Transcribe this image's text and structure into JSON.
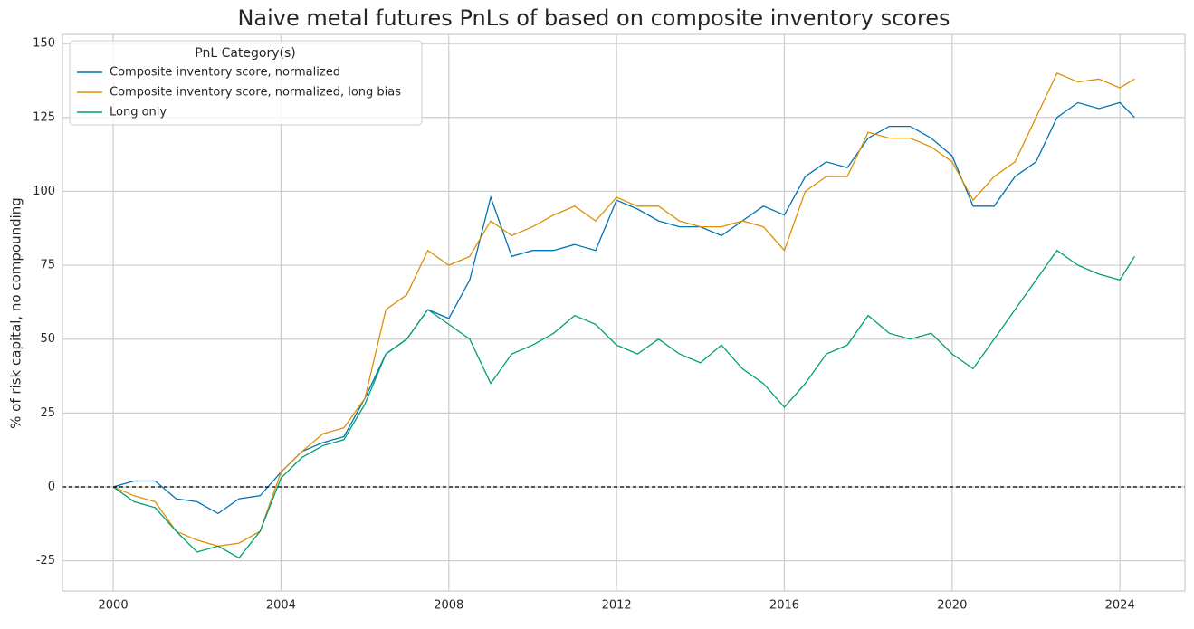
{
  "chart_data": {
    "type": "line",
    "title": "Naive metal futures PnLs of based on composite inventory scores",
    "ylabel": "% of risk capital, no compounding",
    "legend_title": "PnL Category(s)",
    "legend": "upper left",
    "grid": true,
    "hline": 0,
    "x": [
      2000,
      2000.5,
      2001,
      2001.5,
      2002,
      2002.5,
      2003,
      2003.5,
      2004,
      2004.5,
      2005,
      2005.5,
      2006,
      2006.5,
      2007,
      2007.5,
      2008,
      2008.5,
      2009,
      2009.5,
      2010,
      2010.5,
      2011,
      2011.5,
      2012,
      2012.5,
      2013,
      2013.5,
      2014,
      2014.5,
      2015,
      2015.5,
      2016,
      2016.5,
      2017,
      2017.5,
      2018,
      2018.5,
      2019,
      2019.5,
      2020,
      2020.5,
      2021,
      2021.5,
      2022,
      2022.5,
      2023,
      2023.5,
      2024,
      2024.35
    ],
    "xlim": [
      1998.79,
      2025.55
    ],
    "xticks": [
      2000,
      2004,
      2008,
      2012,
      2016,
      2020,
      2024
    ],
    "ylim": [
      -35.2,
      153.1
    ],
    "yticks": [
      -25,
      0,
      25,
      50,
      75,
      100,
      125,
      150
    ],
    "series": [
      {
        "name": "Composite inventory score, normalized",
        "color": "#0173b2",
        "values": [
          0,
          2,
          2,
          -4,
          -5,
          -9,
          -4,
          -3,
          5,
          12,
          15,
          17,
          30,
          45,
          50,
          60,
          57,
          70,
          98,
          78,
          80,
          80,
          82,
          80,
          97,
          94,
          90,
          88,
          88,
          85,
          90,
          95,
          92,
          105,
          110,
          108,
          118,
          122,
          122,
          118,
          112,
          95,
          95,
          105,
          110,
          125,
          130,
          128,
          130,
          125
        ]
      },
      {
        "name": "Composite inventory score, normalized, long bias",
        "color": "#de8f05",
        "values": [
          0,
          -3,
          -5,
          -15,
          -18,
          -20,
          -19,
          -15,
          5,
          12,
          18,
          20,
          30,
          60,
          65,
          80,
          75,
          78,
          90,
          85,
          88,
          92,
          95,
          90,
          98,
          95,
          95,
          90,
          88,
          88,
          90,
          88,
          80,
          100,
          105,
          105,
          120,
          118,
          118,
          115,
          110,
          97,
          105,
          110,
          125,
          140,
          137,
          138,
          135,
          138
        ]
      },
      {
        "name": "Long only",
        "color": "#029e73",
        "values": [
          0,
          -5,
          -7,
          -15,
          -22,
          -20,
          -24,
          -15,
          3,
          10,
          14,
          16,
          28,
          45,
          50,
          60,
          55,
          50,
          35,
          45,
          48,
          52,
          58,
          55,
          48,
          45,
          50,
          45,
          42,
          48,
          40,
          35,
          27,
          35,
          45,
          48,
          58,
          52,
          50,
          52,
          45,
          40,
          50,
          60,
          70,
          80,
          75,
          72,
          70,
          78
        ]
      }
    ]
  }
}
